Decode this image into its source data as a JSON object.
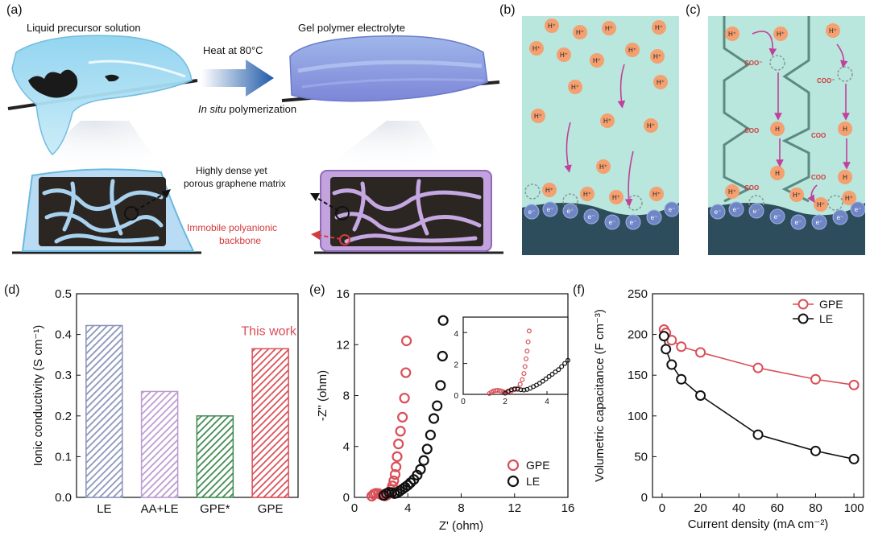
{
  "panels": {
    "a": "(a)",
    "b": "(b)",
    "c": "(c)",
    "d": "(d)",
    "e": "(e)",
    "f": "(f)"
  },
  "schematic_a": {
    "left_title": "Liquid precursor solution",
    "right_title": "Gel polymer electrolyte",
    "arrow_top": "Heat at 80°C",
    "arrow_bottom_italic": "In situ",
    "arrow_bottom_rest": " polymerization",
    "matrix_line1": "Highly dense yet",
    "matrix_line2": "porous graphene matrix",
    "backbone_line1": "Immobile polyanionic",
    "backbone_line2": "backbone"
  },
  "ions": {
    "proton": "H⁺",
    "proton_bound": "H",
    "electron": "e⁻",
    "carboxylate": "COO⁻",
    "carboxyl": "COO"
  },
  "colors": {
    "electrolyte_bg": "#b9e6dd",
    "electrode": "#2e4d5c",
    "proton_fill": "#f4a070",
    "electron_fill": "#6f86c6",
    "arrow_magenta": "#c2409a",
    "gpe_red": "#d94f57",
    "le_black": "#111111",
    "bar_LE": "#8a93b8",
    "bar_AALE": "#bb9ad0",
    "bar_GPEstar": "#3f8a4f",
    "bar_GPE": "#d94f57"
  },
  "chart_data": [
    {
      "panel": "d",
      "type": "bar",
      "categories": [
        "LE",
        "AA+LE",
        "GPE*",
        "GPE"
      ],
      "values": [
        0.422,
        0.26,
        0.2,
        0.365
      ],
      "ylabel": "Ionic conductivity (S cm⁻¹)",
      "ylim": [
        0.0,
        0.5
      ],
      "yticks": [
        "0.0",
        "0.1",
        "0.2",
        "0.3",
        "0.4",
        "0.5"
      ],
      "annotation": "This work",
      "hatched": true
    },
    {
      "panel": "e",
      "type": "scatter",
      "xlabel": "Z' (ohm)",
      "ylabel": "-Z'' (ohm)",
      "xlim": [
        0,
        16
      ],
      "ylim": [
        0,
        16
      ],
      "xticks": [
        "0",
        "4",
        "8",
        "12",
        "16"
      ],
      "yticks": [
        "0",
        "4",
        "8",
        "12",
        "16"
      ],
      "legend": "bottom-right",
      "series": [
        {
          "name": "GPE",
          "x": [
            1.3,
            1.45,
            1.6,
            1.8,
            2.0,
            2.15,
            2.3,
            2.45,
            2.6,
            2.75,
            2.85,
            2.95,
            3.05,
            3.12,
            3.2,
            3.3,
            3.45,
            3.6,
            3.75,
            3.85
          ],
          "y": [
            0.1,
            0.25,
            0.32,
            0.3,
            0.22,
            0.15,
            0.12,
            0.2,
            0.35,
            0.6,
            0.9,
            1.3,
            1.8,
            2.4,
            3.2,
            4.2,
            5.2,
            6.3,
            7.8,
            9.8
          ]
        },
        {
          "name": "LE",
          "x": [
            2.2,
            2.4,
            2.6,
            2.8,
            3.0,
            3.2,
            3.4,
            3.6,
            3.8,
            4.0,
            4.2,
            4.45,
            4.7,
            4.95,
            5.2,
            5.45,
            5.7,
            5.95,
            6.2,
            6.45,
            6.6
          ],
          "y": [
            0.15,
            0.3,
            0.4,
            0.38,
            0.3,
            0.35,
            0.5,
            0.65,
            0.8,
            0.95,
            1.15,
            1.4,
            1.75,
            2.2,
            2.9,
            3.8,
            4.9,
            6.2,
            7.2,
            8.8,
            11.1
          ]
        }
      ],
      "extra_points": {
        "GPE": [
          [
            3.9,
            12.3
          ]
        ],
        "LE": [
          [
            6.65,
            13.9
          ]
        ]
      }
    },
    {
      "panel": "e-inset",
      "type": "scatter",
      "xlim": [
        0,
        5
      ],
      "ylim": [
        0,
        5
      ],
      "xticks": [
        "0",
        "2",
        "4"
      ],
      "yticks": [
        "0",
        "2",
        "4"
      ],
      "series": [
        {
          "name": "GPE",
          "x": [
            1.25,
            1.35,
            1.45,
            1.55,
            1.65,
            1.75,
            1.85,
            1.95,
            2.05,
            2.15,
            2.3,
            2.45,
            2.6,
            2.72,
            2.82,
            2.9,
            2.95,
            3.0,
            3.05,
            3.1,
            3.15
          ],
          "y": [
            0.05,
            0.15,
            0.22,
            0.25,
            0.26,
            0.24,
            0.2,
            0.15,
            0.12,
            0.15,
            0.22,
            0.3,
            0.4,
            0.65,
            0.95,
            1.35,
            1.8,
            2.3,
            2.8,
            3.4,
            4.1
          ]
        },
        {
          "name": "LE",
          "x": [
            2.0,
            2.15,
            2.3,
            2.45,
            2.6,
            2.75,
            2.9,
            3.05,
            3.2,
            3.35,
            3.5,
            3.65,
            3.8,
            3.95,
            4.1,
            4.25,
            4.4,
            4.55,
            4.7,
            4.85,
            5.0
          ],
          "y": [
            0.08,
            0.2,
            0.3,
            0.35,
            0.33,
            0.3,
            0.28,
            0.32,
            0.4,
            0.5,
            0.6,
            0.72,
            0.85,
            1.0,
            1.15,
            1.3,
            1.45,
            1.6,
            1.8,
            2.0,
            2.2
          ]
        }
      ]
    },
    {
      "panel": "f",
      "type": "line",
      "xlabel": "Current density (mA cm⁻²)",
      "ylabel": "Volumetric capacitance (F cm⁻³)",
      "xlim": [
        -5,
        105
      ],
      "ylim": [
        0,
        250
      ],
      "xticks": [
        "0",
        "20",
        "40",
        "60",
        "80",
        "100"
      ],
      "yticks": [
        "0",
        "50",
        "100",
        "150",
        "200",
        "250"
      ],
      "legend": "top-right",
      "x": [
        1,
        2,
        5,
        10,
        20,
        50,
        80,
        100
      ],
      "series": [
        {
          "name": "GPE",
          "values": [
            206,
            202,
            193,
            185,
            178,
            159,
            145,
            138
          ]
        },
        {
          "name": "LE",
          "values": [
            198,
            182,
            163,
            145,
            125,
            77,
            57,
            47
          ]
        }
      ]
    }
  ]
}
